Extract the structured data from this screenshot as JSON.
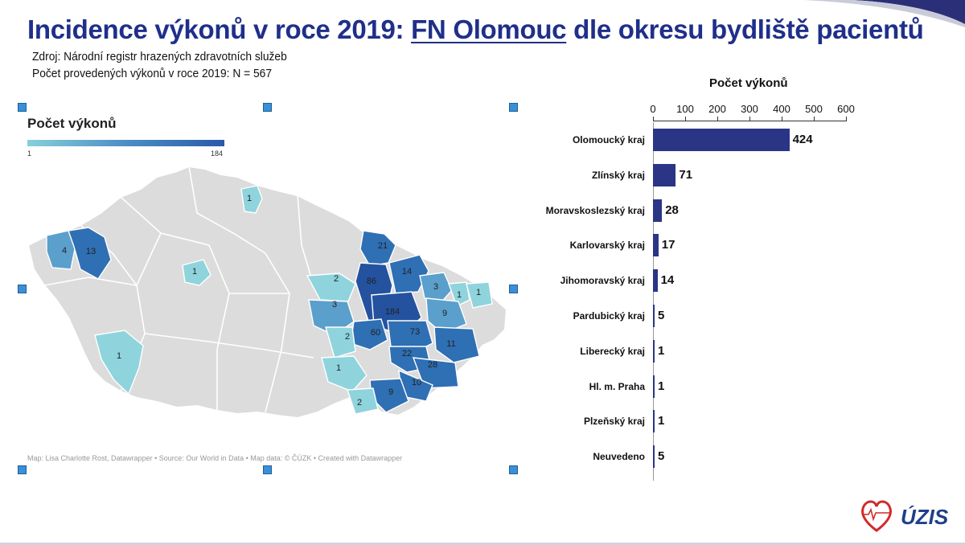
{
  "page": {
    "title_prefix": "Incidence výkonů v roce 2019: ",
    "title_highlight": "FN Olomouc",
    "title_suffix": " dle okresu bydliště pacientů",
    "source_line": "Zdroj: Národní registr hrazených zdravotních služeb",
    "count_line": "Počet provedených výkonů v roce 2019: N  = 567",
    "logo_text": "ÚZIS"
  },
  "map": {
    "legend_title": "Počet výkonů",
    "legend_min": "1",
    "legend_max": "184",
    "credit": "Map: Lisa Charlotte Rost, Datawrapper • Source: Our World in Data • Map data: © ČÚZK  • Created with Datawrapper",
    "district_values": [
      "1",
      "4",
      "13",
      "1",
      "1",
      "21",
      "86",
      "2",
      "3",
      "14",
      "3",
      "1",
      "1",
      "184",
      "9",
      "60",
      "73",
      "2",
      "11",
      "22",
      "1",
      "28",
      "10",
      "9",
      "2"
    ],
    "colors": {
      "base": "#dcdcdc",
      "low": "#8fd4dd",
      "mid": "#5b9fcc",
      "high": "#2f6fb4",
      "max": "#24529f",
      "border": "#ffffff"
    }
  },
  "chart_data": {
    "type": "bar",
    "orientation": "horizontal",
    "title": "Počet výkonů",
    "categories": [
      "Olomoucký kraj",
      "Zlínský kraj",
      "Moravskoslezský kraj",
      "Karlovarský kraj",
      "Jihomoravský kraj",
      "Pardubický kraj",
      "Liberecký kraj",
      "Hl. m. Praha",
      "Plzeňský kraj",
      "Neuvedeno"
    ],
    "values": [
      424,
      71,
      28,
      17,
      14,
      5,
      1,
      1,
      1,
      5
    ],
    "value_labels": [
      "424",
      "71",
      "28",
      "17",
      "14",
      "5",
      "1",
      "1",
      "1",
      "5"
    ],
    "xlim": [
      0,
      600
    ],
    "xticks": [
      "0",
      "100",
      "200",
      "300",
      "400",
      "500",
      "600"
    ],
    "axis_position": "top",
    "bar_color": "#2a3585",
    "grid": false
  }
}
